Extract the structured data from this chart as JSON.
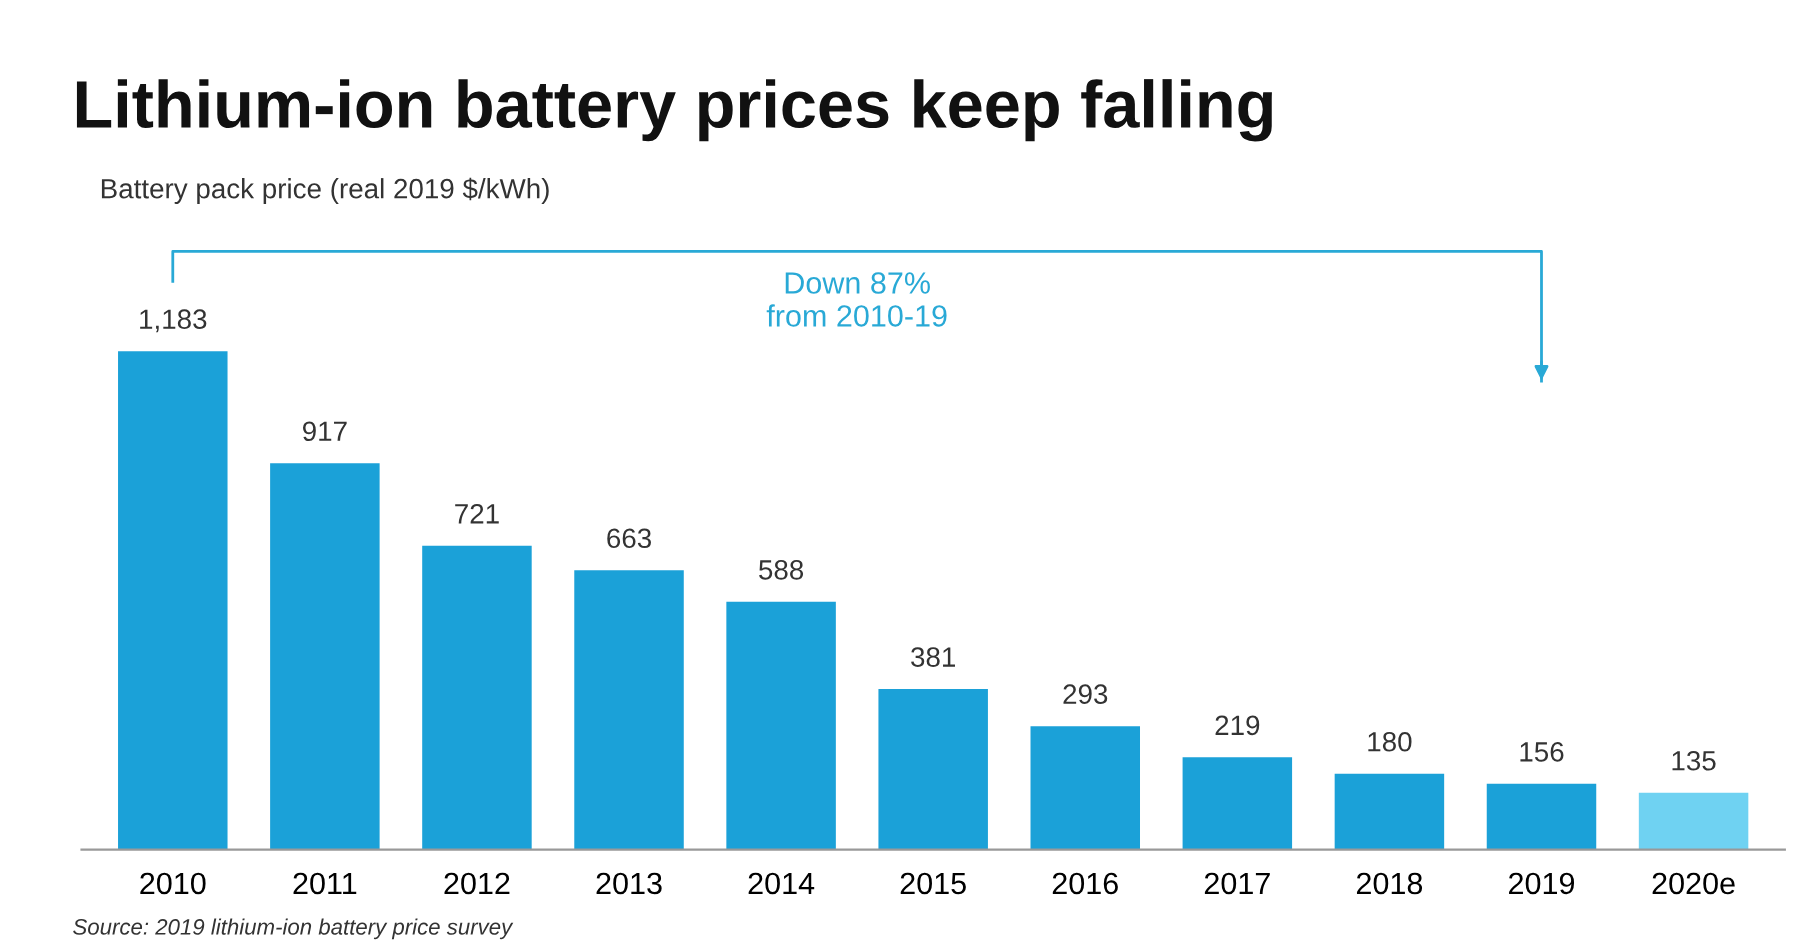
{
  "chart_data": {
    "type": "bar",
    "title": "Lithium-ion battery prices keep falling",
    "subtitle": "Battery pack price (real 2019 $/kWh)",
    "categories": [
      "2010",
      "2011",
      "2012",
      "2013",
      "2014",
      "2015",
      "2016",
      "2017",
      "2018",
      "2019",
      "2020e"
    ],
    "values": [
      1183,
      917,
      721,
      663,
      588,
      381,
      293,
      219,
      180,
      156,
      135
    ],
    "colors": [
      "#1ba1d8",
      "#1ba1d8",
      "#1ba1d8",
      "#1ba1d8",
      "#1ba1d8",
      "#1ba1d8",
      "#1ba1d8",
      "#1ba1d8",
      "#1ba1d8",
      "#1ba1d8",
      "#6fd2f2"
    ],
    "value_labels": [
      "1,183",
      "917",
      "721",
      "663",
      "588",
      "381",
      "293",
      "219",
      "180",
      "156",
      "135"
    ],
    "grid": false,
    "legend": false,
    "annotations": [
      "Down 87%\nfrom 2010-19",
      "Source: 2019 lithium-ion battery price survey"
    ]
  }
}
